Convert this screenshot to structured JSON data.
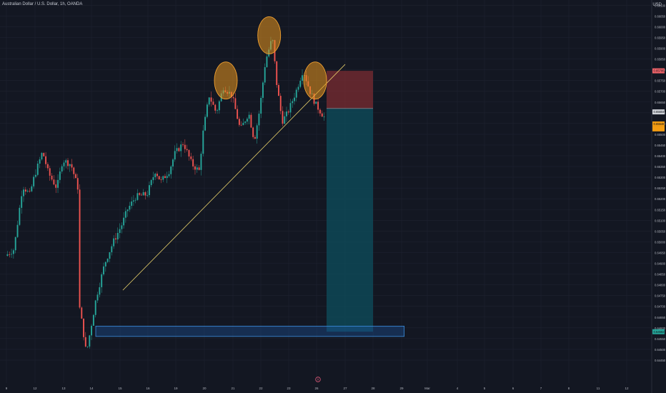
{
  "header": {
    "symbol_title": "Australian Dollar / U.S. Dollar, 1h, OANDA",
    "currency": "USD"
  },
  "theme": {
    "background": "#131722",
    "grid": "#1e2230",
    "bull": "#26a69a",
    "bear": "#ef5350",
    "trendline": "#e8d16b",
    "circle_fill": "#e9951d",
    "stop_zone": "#7b2c31",
    "target_zone": "#0e4f5d"
  },
  "chart_data": {
    "type": "candlestick",
    "title": "Australian Dollar / U.S. Dollar, 1h, OANDA",
    "ylabel": "USD",
    "ylim": [
      0.644,
      0.6615
    ],
    "y_ticks": [
      "0.66100",
      "0.66050",
      "0.66000",
      "0.65950",
      "0.65900",
      "0.65850",
      "0.65800",
      "0.65750",
      "0.65700",
      "0.65650",
      "0.65600",
      "0.65550",
      "0.65500",
      "0.65450",
      "0.65400",
      "0.65350",
      "0.65300",
      "0.65250",
      "0.65200",
      "0.65150",
      "0.65100",
      "0.65050",
      "0.65000",
      "0.64950",
      "0.64900",
      "0.64850",
      "0.64800",
      "0.64750",
      "0.64700",
      "0.64650",
      "0.64600",
      "0.64550",
      "0.64500",
      "0.64450"
    ],
    "x_ticks": [
      {
        "label": "9",
        "day": 0
      },
      {
        "label": "12",
        "day": 1
      },
      {
        "label": "13",
        "day": 2
      },
      {
        "label": "14",
        "day": 3
      },
      {
        "label": "15",
        "day": 4
      },
      {
        "label": "16",
        "day": 5
      },
      {
        "label": "19",
        "day": 6
      },
      {
        "label": "20",
        "day": 7
      },
      {
        "label": "21",
        "day": 8
      },
      {
        "label": "22",
        "day": 9
      },
      {
        "label": "23",
        "day": 10
      },
      {
        "label": "26",
        "day": 11
      },
      {
        "label": "27",
        "day": 12
      },
      {
        "label": "28",
        "day": 13
      },
      {
        "label": "29",
        "day": 14
      },
      {
        "label": "Mar",
        "day": 15
      },
      {
        "label": "4",
        "day": 16
      },
      {
        "label": "5",
        "day": 17
      },
      {
        "label": "6",
        "day": 18
      },
      {
        "label": "7",
        "day": 19
      },
      {
        "label": "8",
        "day": 20
      },
      {
        "label": "11",
        "day": 21
      },
      {
        "label": "12",
        "day": 22
      }
    ],
    "price_path": [
      [
        0,
        0.64935
      ],
      [
        0.3,
        0.64965
      ],
      [
        0.6,
        0.6526
      ],
      [
        0.85,
        0.6522
      ],
      [
        1.0,
        0.653
      ],
      [
        1.3,
        0.6542
      ],
      [
        1.5,
        0.6532
      ],
      [
        1.8,
        0.6525
      ],
      [
        2.0,
        0.6538
      ],
      [
        2.3,
        0.6536
      ],
      [
        2.55,
        0.6525
      ],
      [
        2.6,
        0.647
      ],
      [
        2.7,
        0.6462
      ],
      [
        2.85,
        0.6448
      ],
      [
        3.0,
        0.6459
      ],
      [
        3.2,
        0.6474
      ],
      [
        3.5,
        0.649
      ],
      [
        3.8,
        0.65
      ],
      [
        4.1,
        0.6508
      ],
      [
        4.3,
        0.6515
      ],
      [
        4.6,
        0.6521
      ],
      [
        5.0,
        0.6522
      ],
      [
        5.3,
        0.6533
      ],
      [
        5.5,
        0.6528
      ],
      [
        5.8,
        0.6533
      ],
      [
        6.0,
        0.6541
      ],
      [
        6.3,
        0.6546
      ],
      [
        6.6,
        0.6536
      ],
      [
        6.85,
        0.6533
      ],
      [
        7.0,
        0.6552
      ],
      [
        7.2,
        0.6568
      ],
      [
        7.45,
        0.656
      ],
      [
        7.7,
        0.6572
      ],
      [
        8.0,
        0.6568
      ],
      [
        8.3,
        0.6552
      ],
      [
        8.6,
        0.656
      ],
      [
        8.8,
        0.6547
      ],
      [
        9.0,
        0.6562
      ],
      [
        9.2,
        0.6584
      ],
      [
        9.45,
        0.6595
      ],
      [
        9.6,
        0.6574
      ],
      [
        9.8,
        0.6556
      ],
      [
        10.0,
        0.656
      ],
      [
        10.3,
        0.657
      ],
      [
        10.55,
        0.658
      ],
      [
        10.8,
        0.657
      ],
      [
        11.0,
        0.6564
      ],
      [
        11.3,
        0.6558
      ]
    ],
    "current_price": "0.65604",
    "price_tags": [
      {
        "label": "0.65795",
        "price": 0.65795,
        "color": "#f0646a"
      },
      {
        "label": "0.65604",
        "price": 0.65604,
        "color": "#cfd2d8"
      },
      {
        "label": "0.65548",
        "price": 0.65548,
        "color": "#f39c12"
      },
      {
        "label": "",
        "price": 0.65525,
        "color": "#f39c12"
      },
      {
        "label": "0.64582",
        "price": 0.64582,
        "color": "#26a69a"
      }
    ],
    "annotations": {
      "trendline": [
        [
          4.1,
          0.64775
        ],
        [
          12.0,
          0.65825
        ]
      ],
      "circles": [
        {
          "day": 7.75,
          "price": 0.6575
        },
        {
          "day": 9.3,
          "price": 0.6596
        },
        {
          "day": 10.95,
          "price": 0.6575
        }
      ],
      "position": {
        "day_start": 11.35,
        "day_end": 13.0,
        "entry": 0.6562,
        "stop": 0.65795,
        "target": 0.64582
      },
      "support_box": {
        "day_start": 3.15,
        "day_end": 14.1,
        "top": 0.64608,
        "bottom": 0.6456
      }
    }
  }
}
